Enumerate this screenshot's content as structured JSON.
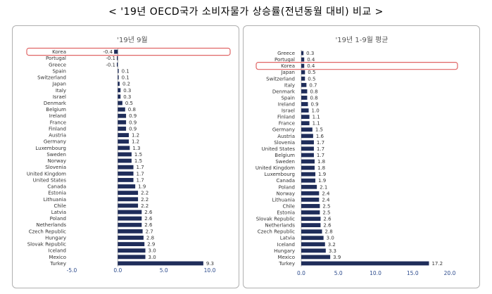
{
  "page": {
    "title": "< '19년 OECD국가 소비자물가 상승률(전년동월 대비) 비교 >"
  },
  "colors": {
    "bar": "#1f2d5a",
    "highlight_border": "#e06666",
    "axis": "#888888",
    "tick_text": "#2b4a8c"
  },
  "chart_data": [
    {
      "type": "bar",
      "orientation": "horizontal",
      "title": "'19년 9월",
      "highlight": "Korea",
      "xlim": [
        -5,
        10
      ],
      "xticks": [
        "-5.0",
        "0.0",
        "5.0",
        "10.0"
      ],
      "xtick_values": [
        -5,
        0,
        5,
        10
      ],
      "grid": false,
      "categories": [
        "Korea",
        "Portugal",
        "Greece",
        "Spain",
        "Switzerland",
        "Japan",
        "Italy",
        "Israel",
        "Denmark",
        "Belgium",
        "Ireland",
        "France",
        "Finland",
        "Austria",
        "Germany",
        "Luxembourg",
        "Sweden",
        "Norway",
        "Slovenia",
        "United Kingdom",
        "United States",
        "Canada",
        "Estonia",
        "Lithuania",
        "Chile",
        "Latvia",
        "Poland",
        "Netherlands",
        "Czech Republic",
        "Hungary",
        "Slovak Republic",
        "Iceland",
        "Mexico",
        "Turkey"
      ],
      "values": [
        -0.4,
        -0.1,
        -0.1,
        0.1,
        0.1,
        0.2,
        0.3,
        0.3,
        0.5,
        0.8,
        0.9,
        0.9,
        0.9,
        1.2,
        1.2,
        1.3,
        1.5,
        1.5,
        1.7,
        1.7,
        1.7,
        1.9,
        2.2,
        2.2,
        2.2,
        2.6,
        2.6,
        2.6,
        2.7,
        2.8,
        2.9,
        3.0,
        3.0,
        9.3
      ],
      "labels": [
        "-0.4",
        "-0.1",
        "-0.1",
        "0.1",
        "0.1",
        "0.2",
        "0.3",
        "0.3",
        "0.5",
        "0.8",
        "0.9",
        "0.9",
        "0.9",
        "1.2",
        "1.2",
        "1.3",
        "1.5",
        "1.5",
        "1.7",
        "1.7",
        "1.7",
        "1.9",
        "2.2",
        "2.2",
        "2.2",
        "2.6",
        "2.6",
        "2.6",
        "2.7",
        "2.8",
        "2.9",
        "3.0",
        "3.0",
        "9.3"
      ]
    },
    {
      "type": "bar",
      "orientation": "horizontal",
      "title": "'19년 1-9월 평균",
      "highlight": "Korea",
      "xlim": [
        0,
        20
      ],
      "xticks": [
        "0.0",
        "5.0",
        "10.0",
        "15.0",
        "20.0"
      ],
      "xtick_values": [
        0,
        5,
        10,
        15,
        20
      ],
      "grid": false,
      "categories": [
        "Greece",
        "Portugal",
        "Korea",
        "Japan",
        "Switzerland",
        "Italy",
        "Denmark",
        "Spain",
        "Ireland",
        "Israel",
        "Finland",
        "France",
        "Germany",
        "Austria",
        "Slovenia",
        "United States",
        "Belgium",
        "Sweden",
        "United Kingdom",
        "Luxembourg",
        "Canada",
        "Poland",
        "Norway",
        "Lithuania",
        "Chile",
        "Estonia",
        "Slovak Republic",
        "Netherlands",
        "Czech Republic",
        "Latvia",
        "Iceland",
        "Hungary",
        "Mexico",
        "Turkey"
      ],
      "values": [
        0.3,
        0.4,
        0.4,
        0.5,
        0.5,
        0.7,
        0.8,
        0.8,
        0.9,
        1.0,
        1.1,
        1.1,
        1.5,
        1.6,
        1.7,
        1.7,
        1.7,
        1.8,
        1.8,
        1.9,
        1.9,
        2.1,
        2.4,
        2.4,
        2.5,
        2.5,
        2.6,
        2.6,
        2.8,
        3.0,
        3.2,
        3.3,
        3.9,
        17.2
      ],
      "labels": [
        "0.3",
        "0.4",
        "0.4",
        "0.5",
        "0.5",
        "0.7",
        "0.8",
        "0.8",
        "0.9",
        "1.0",
        "1.1",
        "1.1",
        "1.5",
        "1.6",
        "1.7",
        "1.7",
        "1.7",
        "1.8",
        "1.8",
        "1.9",
        "1.9",
        "2.1",
        "2.4",
        "2.4",
        "2.5",
        "2.5",
        "2.6",
        "2.6",
        "2.8",
        "3.0",
        "3.2",
        "3.3",
        "3.9",
        "17.2"
      ]
    }
  ]
}
